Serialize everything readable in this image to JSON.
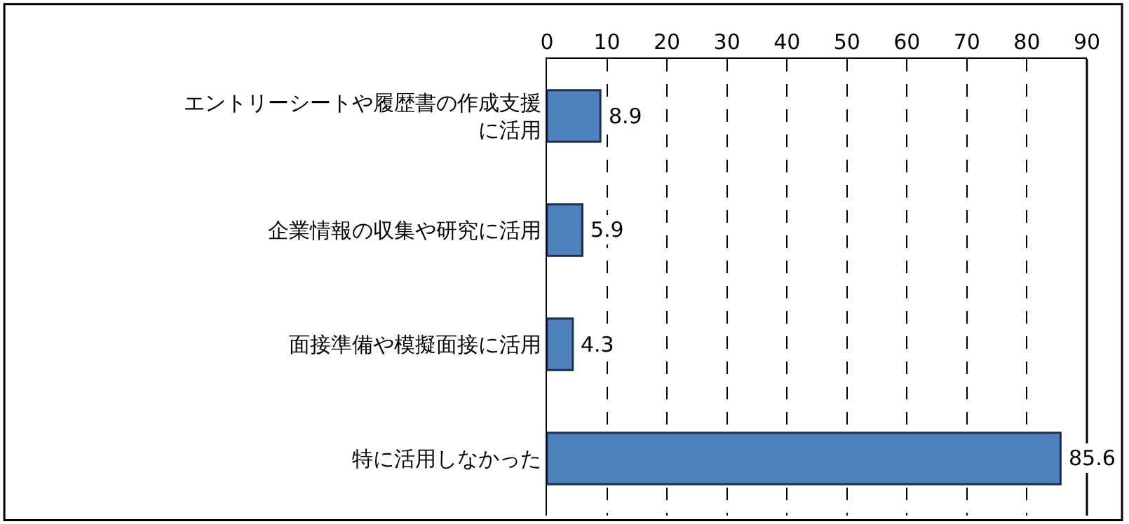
{
  "chart_data": {
    "type": "bar",
    "orientation": "horizontal",
    "categories": [
      "エントリーシートや履歴書の作成支援に活用",
      "企業情報の収集や研究に活用",
      "面接準備や模擬面接に活用",
      "特に活用しなかった"
    ],
    "values": [
      8.9,
      5.9,
      4.3,
      85.6
    ],
    "color": "#4f81bd",
    "xlim": [
      0,
      90
    ],
    "xticks": [
      0,
      10,
      20,
      30,
      40,
      50,
      60,
      70,
      80,
      90
    ],
    "grid": "x",
    "data_labels": true,
    "legend": false
  }
}
